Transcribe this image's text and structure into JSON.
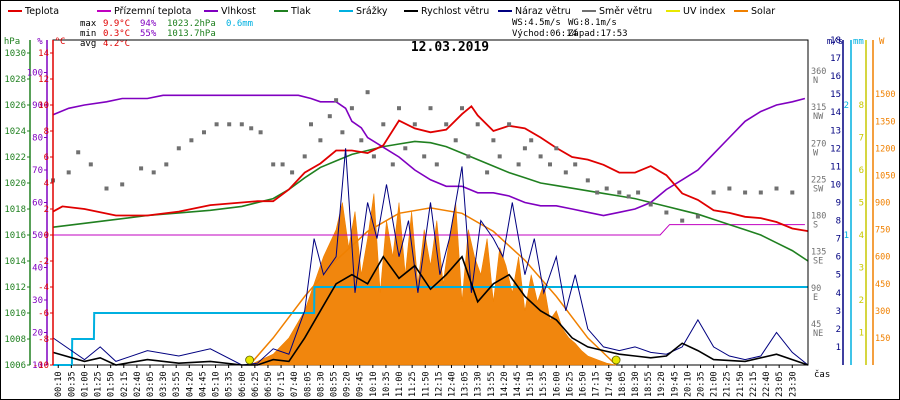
{
  "chart_data": {
    "type": "line",
    "title": "12.03.2019",
    "legend": [
      {
        "name": "Teplota",
        "color": "#e00000"
      },
      {
        "name": "Přízemní teplota",
        "color": "#c000c0"
      },
      {
        "name": "Vlhkost",
        "color": "#8000c0"
      },
      {
        "name": "Tlak",
        "color": "#208020"
      },
      {
        "name": "Srážky",
        "color": "#00b0e0"
      },
      {
        "name": "Rychlost větru",
        "color": "#000000"
      },
      {
        "name": "Náraz větru",
        "color": "#000080"
      },
      {
        "name": "Směr větru",
        "color": "#707070"
      },
      {
        "name": "UV index",
        "color": "#e8e800"
      },
      {
        "name": "Solar",
        "color": "#f08000"
      }
    ],
    "stats": {
      "max": {
        "label": "max",
        "temp": "9.9°C",
        "hum": "94%",
        "press": "1023.2hPa",
        "rain": "0.6mm"
      },
      "min": {
        "label": "min",
        "temp": "0.3°C",
        "hum": "55%",
        "press": "1013.7hPa"
      },
      "avg": {
        "label": "avg",
        "temp": "4.2°C"
      }
    },
    "info": {
      "ws": "WS:4.5m/s",
      "wg": "WG:8.1m/s",
      "sunrise": "Východ:06:14",
      "sunset": "Západ:17:53"
    },
    "axes": {
      "hpa": {
        "unit": "hPa",
        "ticks": [
          "1006",
          "1008",
          "1010",
          "1012",
          "1014",
          "1016",
          "1018",
          "1020",
          "1022",
          "1024",
          "1026",
          "1028",
          "1030"
        ],
        "range": [
          1006,
          1031
        ]
      },
      "pct": {
        "unit": "%",
        "ticks": [
          "10",
          "20",
          "30",
          "40",
          "50",
          "60",
          "70",
          "80",
          "90",
          "100"
        ],
        "range": [
          10,
          110
        ]
      },
      "temp": {
        "unit": "°C",
        "ticks": [
          "-10",
          "-8",
          "-6",
          "-4",
          "-2",
          "0",
          "2",
          "4",
          "6",
          "8",
          "10",
          "12",
          "14"
        ],
        "range": [
          -10,
          15
        ]
      },
      "dir": {
        "ticks": [
          {
            "v": "45",
            "c": "NE"
          },
          {
            "v": "90",
            "c": "E"
          },
          {
            "v": "135",
            "c": "SE"
          },
          {
            "v": "180",
            "c": "S"
          },
          {
            "v": "225",
            "c": "SW"
          },
          {
            "v": "270",
            "c": "W"
          },
          {
            "v": "315",
            "c": "NW"
          },
          {
            "v": "360",
            "c": "N"
          }
        ],
        "range": [
          0,
          405
        ]
      },
      "wind": {
        "unit": "m/s",
        "ticks": [
          "1",
          "2",
          "3",
          "4",
          "5",
          "6",
          "7",
          "8",
          "9",
          "10",
          "11",
          "12",
          "13",
          "14",
          "15",
          "16",
          "17",
          "18"
        ],
        "range": [
          0,
          18
        ]
      },
      "rain": {
        "unit": "mm",
        "ticks": [
          "1",
          "2"
        ],
        "range": [
          0,
          2.5
        ]
      },
      "uv": {
        "ticks": [
          "1",
          "2",
          "3",
          "4",
          "5",
          "6",
          "7",
          "8"
        ],
        "range": [
          0,
          10
        ]
      },
      "solar": {
        "unit": "W",
        "ticks": [
          "150",
          "300",
          "450",
          "600",
          "750",
          "900",
          "1050",
          "1200",
          "1350",
          "1500"
        ],
        "range": [
          0,
          1800
        ]
      },
      "time": {
        "unit": "čas",
        "ticks": [
          "00:10",
          "00:35",
          "01:00",
          "01:25",
          "01:50",
          "02:15",
          "02:40",
          "03:05",
          "03:30",
          "03:55",
          "04:20",
          "04:45",
          "05:10",
          "05:35",
          "06:00",
          "06:25",
          "06:50",
          "07:15",
          "07:40",
          "08:05",
          "08:30",
          "08:55",
          "09:20",
          "09:45",
          "10:10",
          "10:35",
          "11:00",
          "11:25",
          "11:50",
          "12:15",
          "12:40",
          "13:05",
          "13:30",
          "13:55",
          "14:20",
          "14:45",
          "15:10",
          "15:35",
          "16:00",
          "16:25",
          "16:50",
          "17:15",
          "17:40",
          "18:05",
          "18:30",
          "18:55",
          "19:20",
          "19:45",
          "20:10",
          "20:35",
          "21:00",
          "21:25",
          "21:50",
          "22:15",
          "22:40",
          "23:05",
          "23:30"
        ]
      }
    },
    "series": {
      "temperature": {
        "x": [
          0,
          0.3,
          1,
          2,
          3,
          4,
          5,
          6,
          6.5,
          7,
          7.5,
          8,
          8.5,
          9,
          9.5,
          10,
          10.5,
          11,
          11.5,
          12,
          12.5,
          13,
          13.3,
          13.5,
          14,
          14.5,
          15,
          15.5,
          16,
          16.5,
          17,
          17.5,
          18,
          18.5,
          19,
          19.5,
          20,
          20.5,
          21,
          21.5,
          22,
          22.5,
          23,
          23.5,
          24
        ],
        "y": [
          1.8,
          2.2,
          2,
          1.5,
          1.5,
          1.8,
          2.3,
          2.5,
          2.6,
          2.6,
          3.5,
          4.8,
          5.5,
          6.5,
          6.5,
          6.3,
          6.9,
          8.8,
          8.2,
          7.9,
          8.1,
          9.3,
          9.9,
          9.2,
          8,
          8.4,
          8.2,
          7.5,
          6.7,
          6,
          5.8,
          5.4,
          4.8,
          4.8,
          5.3,
          4.6,
          3.2,
          2.7,
          1.9,
          1.7,
          1.4,
          1.3,
          1,
          0.5,
          0.3
        ]
      },
      "ground_temperature": {
        "x": [
          0,
          19.3,
          19.6,
          20.3,
          22,
          23.9
        ],
        "y": [
          0,
          0,
          0.8,
          0.8,
          0.8,
          0.8
        ]
      },
      "humidity": {
        "x": [
          0,
          0.5,
          1,
          1.7,
          2.2,
          3,
          3.5,
          4,
          5,
          6,
          7,
          7.8,
          8.2,
          8.5,
          9,
          9.3,
          9.5,
          9.8,
          10,
          10.5,
          11,
          11.5,
          12,
          12.5,
          13,
          13.5,
          14,
          14.5,
          15,
          15.5,
          16,
          16.5,
          17,
          17.5,
          18,
          18.5,
          19,
          19.5,
          20,
          20.5,
          21,
          21.5,
          22,
          22.5,
          23,
          23.5,
          23.9
        ],
        "y": [
          87,
          89,
          90,
          91,
          92,
          92,
          93,
          93,
          93,
          93,
          93,
          93,
          92,
          91,
          91,
          89,
          85,
          83,
          80,
          77,
          74,
          70,
          67,
          65,
          65,
          63,
          63,
          62,
          60,
          59,
          59,
          58,
          57,
          56,
          57,
          58,
          60,
          64,
          67,
          70,
          75,
          80,
          85,
          88,
          90,
          91,
          92
        ]
      },
      "pressure": {
        "x": [
          0,
          1,
          2,
          3,
          4,
          5,
          6,
          7,
          7.5,
          8,
          8.5,
          9,
          9.5,
          10,
          10.5,
          11,
          11.5,
          12,
          12.5,
          13,
          13.5,
          14,
          14.5,
          15,
          15.5,
          16,
          16.5,
          17,
          17.5,
          18,
          18.5,
          19,
          19.5,
          20,
          20.5,
          21,
          21.5,
          22,
          22.5,
          23,
          23.5,
          24
        ],
        "y": [
          1016.6,
          1016.9,
          1017.2,
          1017.5,
          1017.7,
          1017.9,
          1018.2,
          1018.8,
          1019.5,
          1020.4,
          1021.2,
          1021.7,
          1022.2,
          1022.5,
          1022.8,
          1023,
          1023.2,
          1023.1,
          1022.8,
          1022.3,
          1021.8,
          1021.3,
          1020.8,
          1020.4,
          1020,
          1019.8,
          1019.6,
          1019.4,
          1019.2,
          1019,
          1018.8,
          1018.5,
          1018.2,
          1017.9,
          1017.6,
          1017.2,
          1016.8,
          1016.4,
          1016,
          1015.4,
          1014.8,
          1014
        ]
      },
      "rain": {
        "x": [
          0,
          0.6,
          0.61,
          1.3,
          1.31,
          8.3,
          8.31,
          24
        ],
        "y": [
          0,
          0,
          0.2,
          0.2,
          0.4,
          0.4,
          0.6,
          0.6
        ]
      },
      "wind_speed": {
        "x": [
          0,
          1,
          1.5,
          2,
          3,
          4,
          5,
          6,
          6.5,
          7,
          7.5,
          8,
          8.5,
          9,
          9.5,
          10,
          10.5,
          11,
          11.5,
          12,
          12.5,
          13,
          13.5,
          14,
          14.5,
          15,
          15.5,
          16,
          16.5,
          17,
          17.5,
          18,
          18.5,
          19,
          19.5,
          20,
          20.5,
          21,
          22,
          23,
          24
        ],
        "y": [
          0.7,
          0.2,
          0.4,
          0,
          0.3,
          0.1,
          0.2,
          0,
          0,
          0.3,
          0.2,
          1.5,
          3,
          4.5,
          5,
          4.5,
          6,
          4.8,
          5.5,
          4.2,
          5,
          6,
          3.5,
          4.5,
          5,
          3.8,
          3,
          2.5,
          1.5,
          1,
          0.8,
          0.6,
          0.5,
          0.4,
          0.5,
          1.2,
          0.8,
          0.3,
          0.2,
          0.6,
          0
        ]
      },
      "wind_gust": {
        "x": [
          0,
          1,
          1.5,
          2,
          3,
          4,
          5,
          6,
          6.5,
          7,
          7.5,
          8,
          8.3,
          8.6,
          9,
          9.3,
          9.6,
          10,
          10.3,
          10.6,
          11,
          11.3,
          11.6,
          12,
          12.3,
          12.6,
          13,
          13.3,
          13.6,
          14,
          14.3,
          14.6,
          15,
          15.3,
          15.6,
          16,
          16.3,
          16.6,
          17,
          17.5,
          18,
          18.5,
          19,
          19.5,
          20,
          20.5,
          21,
          21.5,
          22,
          22.5,
          23,
          23.5,
          24
        ],
        "y": [
          1.5,
          0.3,
          1,
          0.2,
          0.8,
          0.5,
          0.9,
          0,
          0.1,
          0.9,
          0.6,
          3,
          7,
          5,
          6,
          12,
          4,
          9,
          7,
          10,
          6,
          8,
          4,
          9,
          5,
          7,
          11,
          4,
          8,
          7,
          6,
          9,
          5,
          7,
          4,
          6,
          3,
          5,
          2,
          1,
          0.8,
          1,
          0.7,
          0.6,
          1,
          2.5,
          1,
          0.5,
          0.3,
          0.5,
          1.8,
          0.7,
          0
        ]
      },
      "wind_direction": {
        "x": [
          0,
          0.5,
          0.8,
          1.2,
          1.7,
          2.2,
          2.8,
          3.2,
          3.6,
          4,
          4.4,
          4.8,
          5.2,
          5.6,
          6,
          6.3,
          6.6,
          7,
          7.3,
          7.6,
          8,
          8.2,
          8.5,
          8.8,
          9,
          9.2,
          9.5,
          9.8,
          10,
          10.2,
          10.5,
          10.8,
          11,
          11.2,
          11.5,
          11.8,
          12,
          12.2,
          12.5,
          12.8,
          13,
          13.2,
          13.5,
          13.8,
          14,
          14.2,
          14.5,
          14.8,
          15,
          15.2,
          15.5,
          15.8,
          16,
          16.3,
          16.6,
          17,
          17.3,
          17.6,
          18,
          18.3,
          18.6,
          19,
          19.5,
          20,
          20.5,
          21,
          21.5,
          22,
          22.5,
          23,
          23.5
        ],
        "y": [
          230,
          240,
          265,
          250,
          220,
          225,
          245,
          240,
          250,
          270,
          280,
          290,
          300,
          300,
          300,
          295,
          290,
          250,
          250,
          240,
          260,
          300,
          280,
          310,
          330,
          290,
          320,
          280,
          340,
          260,
          300,
          250,
          320,
          270,
          300,
          260,
          320,
          250,
          300,
          280,
          320,
          260,
          300,
          240,
          280,
          260,
          300,
          250,
          270,
          280,
          260,
          250,
          270,
          240,
          250,
          230,
          215,
          220,
          215,
          210,
          215,
          200,
          190,
          180,
          185,
          215,
          220,
          215,
          215,
          220,
          215
        ]
      },
      "solar": {
        "x": [
          6.25,
          6.5,
          7,
          7.5,
          8,
          8.3,
          8.6,
          9,
          9.2,
          9.4,
          9.6,
          9.8,
          10,
          10.2,
          10.4,
          10.6,
          10.8,
          11,
          11.2,
          11.4,
          11.6,
          11.8,
          12,
          12.2,
          12.4,
          12.6,
          12.8,
          13,
          13.2,
          13.4,
          13.6,
          13.8,
          14,
          14.2,
          14.4,
          14.6,
          14.8,
          15,
          15.2,
          15.4,
          15.6,
          15.8,
          16,
          16.2,
          16.4,
          16.6,
          16.8,
          17,
          17.3,
          17.6,
          17.9
        ],
        "y": [
          0,
          20,
          60,
          150,
          300,
          450,
          600,
          750,
          900,
          650,
          850,
          500,
          700,
          950,
          400,
          800,
          600,
          900,
          500,
          850,
          450,
          750,
          550,
          800,
          450,
          700,
          900,
          350,
          750,
          600,
          500,
          700,
          350,
          650,
          550,
          400,
          600,
          300,
          500,
          350,
          450,
          250,
          300,
          200,
          150,
          120,
          80,
          50,
          30,
          10,
          0
        ]
      },
      "solar_max": {
        "x": [
          6.25,
          7,
          8,
          9,
          10,
          11,
          12,
          13,
          14,
          15,
          16,
          17,
          17.9
        ],
        "y": [
          0,
          150,
          380,
          580,
          740,
          840,
          870,
          840,
          740,
          580,
          380,
          150,
          0
        ]
      },
      "uv_index": {
        "x": [
          6.25,
          17.9
        ],
        "y": [
          0,
          0
        ]
      }
    }
  }
}
